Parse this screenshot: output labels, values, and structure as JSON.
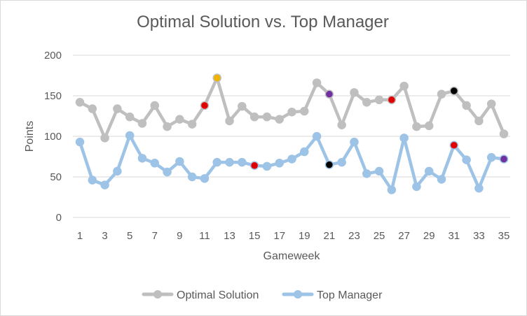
{
  "chart_data": {
    "type": "line",
    "title": "Optimal Solution vs. Top Manager",
    "xlabel": "Gameweek",
    "ylabel": "Points",
    "ylim": [
      0,
      200
    ],
    "yticks": [
      0,
      50,
      100,
      150,
      200
    ],
    "xlim": [
      1,
      35
    ],
    "xticks": [
      1,
      3,
      5,
      7,
      9,
      11,
      13,
      15,
      17,
      19,
      21,
      23,
      25,
      27,
      29,
      31,
      33,
      35
    ],
    "grid": "horizontal",
    "legend": "bottom",
    "x": [
      1,
      2,
      3,
      4,
      5,
      6,
      7,
      8,
      9,
      10,
      11,
      12,
      13,
      14,
      15,
      16,
      17,
      18,
      19,
      20,
      21,
      22,
      23,
      24,
      25,
      26,
      27,
      28,
      29,
      30,
      31,
      32,
      33,
      34,
      35
    ],
    "series": [
      {
        "name": "Optimal Solution",
        "color": "#bfbfbf",
        "values": [
          142,
          134,
          98,
          134,
          124,
          116,
          138,
          112,
          121,
          115,
          138,
          172,
          119,
          137,
          124,
          124,
          121,
          130,
          131,
          166,
          152,
          114,
          154,
          142,
          145,
          145,
          162,
          112,
          113,
          152,
          156,
          138,
          119,
          140,
          103
        ],
        "highlights": [
          {
            "x": 11,
            "color": "#e00000"
          },
          {
            "x": 12,
            "color": "#f0b400"
          },
          {
            "x": 21,
            "color": "#7030a0"
          },
          {
            "x": 26,
            "color": "#e00000"
          },
          {
            "x": 31,
            "color": "#000000"
          }
        ]
      },
      {
        "name": "Top Manager",
        "color": "#9dc3e6",
        "values": [
          93,
          46,
          40,
          57,
          101,
          73,
          67,
          56,
          69,
          50,
          48,
          68,
          68,
          68,
          64,
          63,
          67,
          72,
          81,
          100,
          65,
          68,
          93,
          54,
          57,
          34,
          98,
          38,
          57,
          47,
          89,
          71,
          36,
          74,
          72
        ],
        "highlights": [
          {
            "x": 15,
            "color": "#e00000"
          },
          {
            "x": 21,
            "color": "#000000"
          },
          {
            "x": 31,
            "color": "#e00000"
          },
          {
            "x": 35,
            "color": "#7030a0"
          }
        ]
      }
    ]
  }
}
